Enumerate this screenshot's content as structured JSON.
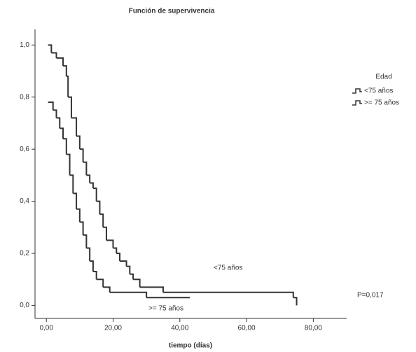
{
  "chart_data": {
    "type": "line",
    "drawstyle": "steps",
    "title": "Función de supervivencia",
    "x_label": "tiempo (días)",
    "legend_title": "Edad",
    "legend": "right",
    "annotations": [
      "<75 años",
      ">= 75 años",
      "P=0,017"
    ],
    "xlim": [
      -3.4,
      90
    ],
    "ylim": [
      -0.05,
      1.06
    ],
    "xticks": [
      {
        "value": 0,
        "label": "0,00"
      },
      {
        "value": 20,
        "label": "20,00"
      },
      {
        "value": 40,
        "label": "40,00"
      },
      {
        "value": 60,
        "label": "60,00"
      },
      {
        "value": 80,
        "label": "80,00"
      }
    ],
    "yticks": [
      {
        "value": 0,
        "label": "0,0"
      },
      {
        "value": 0.2,
        "label": "0,2"
      },
      {
        "value": 0.4,
        "label": "0,4"
      },
      {
        "value": 0.6,
        "label": "0,6"
      },
      {
        "value": 0.8,
        "label": "0,8"
      },
      {
        "value": 1,
        "label": "1,0"
      }
    ],
    "series": [
      {
        "name": "<75 años",
        "color": "#333333",
        "x": [
          0.5,
          1.5,
          3,
          5,
          6,
          6.5,
          7.5,
          9,
          10,
          11,
          12,
          13,
          14,
          15,
          16,
          17,
          18,
          20,
          21,
          22,
          24,
          25,
          26,
          28,
          35,
          73,
          74,
          75
        ],
        "values": [
          1.0,
          0.97,
          0.95,
          0.92,
          0.88,
          0.8,
          0.72,
          0.65,
          0.6,
          0.55,
          0.5,
          0.47,
          0.45,
          0.4,
          0.35,
          0.3,
          0.25,
          0.22,
          0.2,
          0.17,
          0.15,
          0.12,
          0.1,
          0.07,
          0.05,
          0.05,
          0.03,
          0.0
        ]
      },
      {
        "name": ">= 75 años",
        "color": "#333333",
        "x": [
          0.5,
          2,
          3,
          4,
          5,
          6,
          7,
          8,
          9,
          10,
          11,
          12,
          13,
          14,
          15,
          17,
          19,
          30,
          43
        ],
        "values": [
          0.78,
          0.75,
          0.72,
          0.68,
          0.64,
          0.58,
          0.5,
          0.43,
          0.37,
          0.32,
          0.27,
          0.22,
          0.17,
          0.13,
          0.1,
          0.07,
          0.05,
          0.03,
          0.03
        ]
      }
    ]
  }
}
